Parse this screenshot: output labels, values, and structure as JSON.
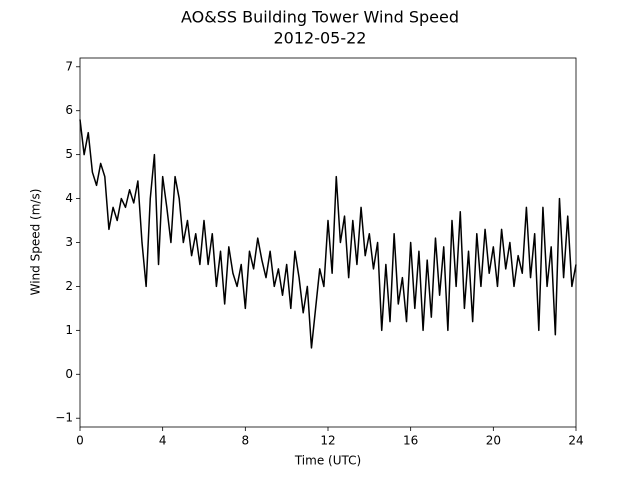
{
  "chart_data": {
    "type": "line",
    "title": "AO&SS Building Tower Wind Speed",
    "subtitle": "2012-05-22",
    "xlabel": "Time (UTC)",
    "ylabel": "Wind Speed (m/s)",
    "x": [
      0,
      0.2,
      0.4,
      0.6,
      0.8,
      1,
      1.2,
      1.4,
      1.6,
      1.8,
      2,
      2.2,
      2.4,
      2.6,
      2.8,
      3,
      3.2,
      3.4,
      3.6,
      3.8,
      4,
      4.2,
      4.4,
      4.6,
      4.8,
      5,
      5.2,
      5.4,
      5.6,
      5.8,
      6,
      6.2,
      6.4,
      6.6,
      6.8,
      7,
      7.2,
      7.4,
      7.6,
      7.8,
      8,
      8.2,
      8.4,
      8.6,
      8.8,
      9,
      9.2,
      9.4,
      9.6,
      9.8,
      10,
      10.2,
      10.4,
      10.6,
      10.8,
      11,
      11.2,
      11.4,
      11.6,
      11.8,
      12,
      12.2,
      12.4,
      12.6,
      12.8,
      13,
      13.2,
      13.4,
      13.6,
      13.8,
      14,
      14.2,
      14.4,
      14.6,
      14.8,
      15,
      15.2,
      15.4,
      15.6,
      15.8,
      16,
      16.2,
      16.4,
      16.6,
      16.8,
      17,
      17.2,
      17.4,
      17.6,
      17.8,
      18,
      18.2,
      18.4,
      18.6,
      18.8,
      19,
      19.2,
      19.4,
      19.6,
      19.8,
      20,
      20.2,
      20.4,
      20.6,
      20.8,
      21,
      21.2,
      21.4,
      21.6,
      21.8,
      22,
      22.2,
      22.4,
      22.6,
      22.8,
      23,
      23.2,
      23.4,
      23.6,
      23.8,
      24
    ],
    "series": [
      {
        "name": "Wind Speed",
        "color": "#000000",
        "values": [
          5.8,
          5.0,
          5.5,
          4.6,
          4.3,
          4.8,
          4.5,
          3.3,
          3.8,
          3.5,
          4.0,
          3.8,
          4.2,
          3.9,
          4.4,
          3.0,
          2.0,
          4.0,
          5.0,
          2.5,
          4.5,
          3.8,
          3.0,
          4.5,
          4.0,
          3.0,
          3.5,
          2.7,
          3.2,
          2.5,
          3.5,
          2.5,
          3.2,
          2.0,
          2.8,
          1.6,
          2.9,
          2.3,
          2.0,
          2.5,
          1.5,
          2.8,
          2.4,
          3.1,
          2.6,
          2.2,
          2.8,
          2.0,
          2.4,
          1.8,
          2.5,
          1.5,
          2.8,
          2.2,
          1.4,
          2.0,
          0.6,
          1.5,
          2.4,
          2.0,
          3.5,
          2.3,
          4.5,
          3.0,
          3.6,
          2.2,
          3.5,
          2.5,
          3.8,
          2.7,
          3.2,
          2.4,
          3.0,
          1.0,
          2.5,
          1.2,
          3.2,
          1.6,
          2.2,
          1.2,
          3.0,
          1.5,
          2.8,
          1.0,
          2.6,
          1.3,
          3.1,
          1.8,
          2.9,
          1.0,
          3.5,
          2.0,
          3.7,
          1.5,
          2.8,
          1.2,
          3.2,
          2.0,
          3.3,
          2.3,
          2.9,
          2.0,
          3.3,
          2.4,
          3.0,
          2.0,
          2.7,
          2.3,
          3.8,
          2.2,
          3.2,
          1.0,
          3.8,
          2.0,
          2.9,
          0.9,
          4.0,
          2.2,
          3.6,
          2.0,
          2.5
        ]
      }
    ],
    "xlim": [
      0,
      24
    ],
    "xticks": [
      0,
      4,
      8,
      12,
      16,
      20,
      24
    ],
    "ylim": [
      -1.2,
      7.2
    ],
    "yticks": [
      {
        "value": -1,
        "label": "−1"
      },
      0,
      1,
      2,
      3,
      4,
      5,
      6,
      7
    ],
    "grid": false
  }
}
